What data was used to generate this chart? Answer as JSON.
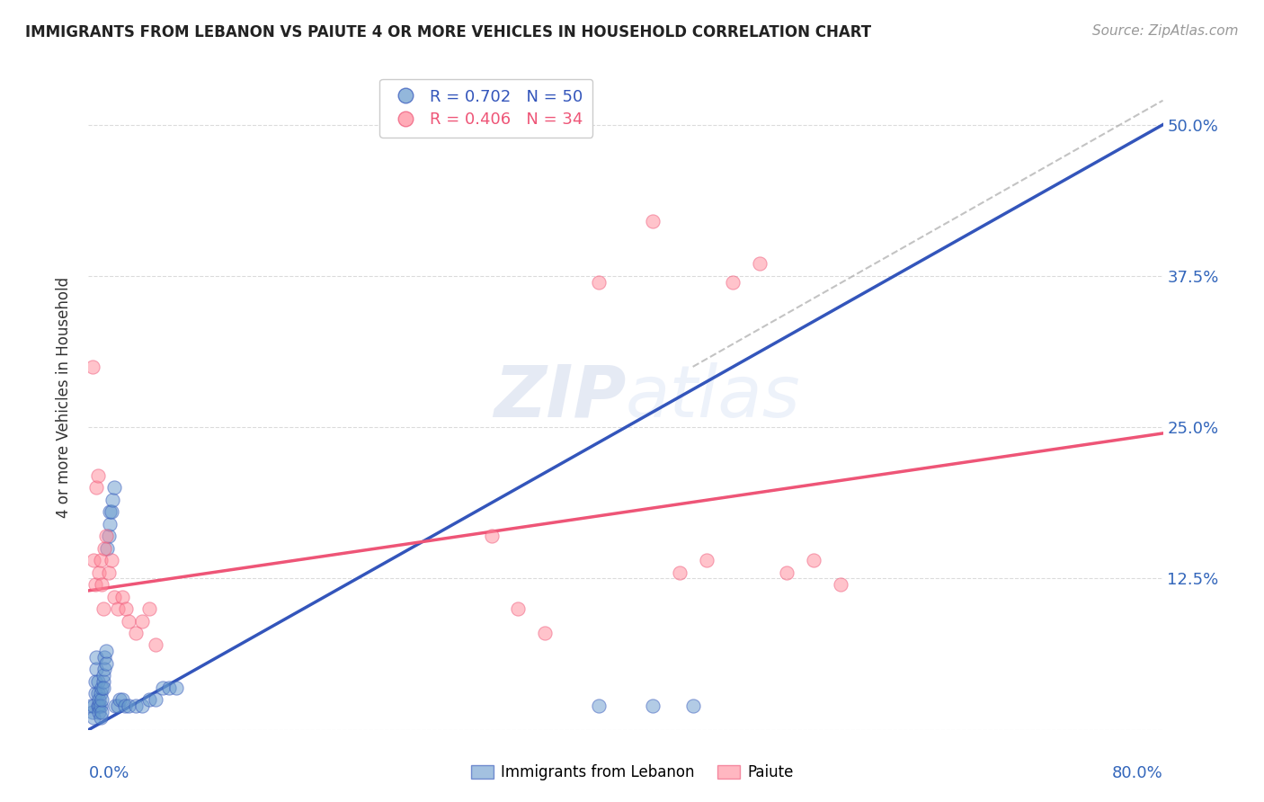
{
  "title": "IMMIGRANTS FROM LEBANON VS PAIUTE 4 OR MORE VEHICLES IN HOUSEHOLD CORRELATION CHART",
  "source": "Source: ZipAtlas.com",
  "ylabel": "4 or more Vehicles in Household",
  "ytick_labels": [
    "",
    "12.5%",
    "25.0%",
    "37.5%",
    "50.0%"
  ],
  "ytick_values": [
    0.0,
    0.125,
    0.25,
    0.375,
    0.5
  ],
  "xlim": [
    0.0,
    0.8
  ],
  "ylim": [
    0.0,
    0.55
  ],
  "legend_blue_R": "R = 0.702",
  "legend_blue_N": "N = 50",
  "legend_pink_R": "R = 0.406",
  "legend_pink_N": "N = 34",
  "color_blue": "#6699CC",
  "color_pink": "#FF8899",
  "color_blue_line": "#3355BB",
  "color_pink_line": "#EE5577",
  "color_dashed_line": "#AAAAAA",
  "blue_scatter_x": [
    0.002,
    0.003,
    0.004,
    0.004,
    0.005,
    0.005,
    0.006,
    0.006,
    0.007,
    0.007,
    0.007,
    0.008,
    0.008,
    0.008,
    0.009,
    0.009,
    0.009,
    0.01,
    0.01,
    0.01,
    0.011,
    0.011,
    0.011,
    0.012,
    0.012,
    0.013,
    0.013,
    0.014,
    0.015,
    0.016,
    0.016,
    0.017,
    0.018,
    0.019,
    0.02,
    0.022,
    0.023,
    0.025,
    0.027,
    0.03,
    0.035,
    0.04,
    0.045,
    0.05,
    0.055,
    0.06,
    0.065,
    0.38,
    0.42,
    0.45
  ],
  "blue_scatter_y": [
    0.02,
    0.015,
    0.01,
    0.02,
    0.03,
    0.04,
    0.05,
    0.06,
    0.02,
    0.03,
    0.04,
    0.02,
    0.015,
    0.025,
    0.03,
    0.02,
    0.01,
    0.015,
    0.025,
    0.035,
    0.04,
    0.045,
    0.035,
    0.05,
    0.06,
    0.055,
    0.065,
    0.15,
    0.16,
    0.17,
    0.18,
    0.18,
    0.19,
    0.2,
    0.02,
    0.02,
    0.025,
    0.025,
    0.02,
    0.02,
    0.02,
    0.02,
    0.025,
    0.025,
    0.035,
    0.035,
    0.035,
    0.02,
    0.02,
    0.02
  ],
  "pink_scatter_x": [
    0.003,
    0.004,
    0.005,
    0.006,
    0.007,
    0.008,
    0.009,
    0.01,
    0.011,
    0.012,
    0.013,
    0.015,
    0.017,
    0.019,
    0.022,
    0.025,
    0.028,
    0.03,
    0.035,
    0.04,
    0.045,
    0.05,
    0.3,
    0.32,
    0.34,
    0.38,
    0.42,
    0.44,
    0.46,
    0.48,
    0.5,
    0.52,
    0.54,
    0.56
  ],
  "pink_scatter_y": [
    0.3,
    0.14,
    0.12,
    0.2,
    0.21,
    0.13,
    0.14,
    0.12,
    0.1,
    0.15,
    0.16,
    0.13,
    0.14,
    0.11,
    0.1,
    0.11,
    0.1,
    0.09,
    0.08,
    0.09,
    0.1,
    0.07,
    0.16,
    0.1,
    0.08,
    0.37,
    0.42,
    0.13,
    0.14,
    0.37,
    0.385,
    0.13,
    0.14,
    0.12
  ],
  "blue_trendline_x": [
    0.0,
    0.8
  ],
  "blue_trendline_y": [
    0.0,
    0.5
  ],
  "pink_trendline_x": [
    0.0,
    0.8
  ],
  "pink_trendline_y": [
    0.115,
    0.245
  ],
  "dashed_line_x": [
    0.45,
    0.8
  ],
  "dashed_line_y": [
    0.3,
    0.52
  ],
  "watermark_zip": "ZIP",
  "watermark_atlas": "atlas",
  "background_color": "#FFFFFF",
  "grid_color": "#CCCCCC"
}
